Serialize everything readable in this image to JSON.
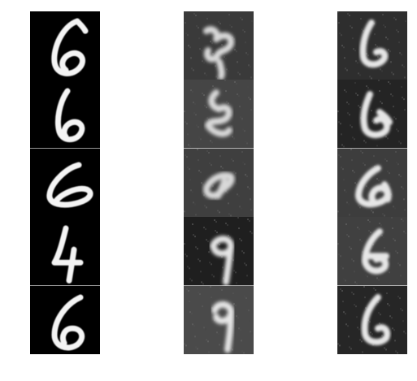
{
  "figure": {
    "columns": [
      {
        "id": "original",
        "style": "clean",
        "tiles": [
          {
            "digit": "6",
            "background": "#000000",
            "stroke": "#f4f4f4"
          },
          {
            "digit": "6",
            "background": "#000000",
            "stroke": "#f4f4f4"
          },
          {
            "digit": "6",
            "background": "#000000",
            "stroke": "#f4f4f4"
          },
          {
            "digit": "4",
            "background": "#000000",
            "stroke": "#f4f4f4"
          },
          {
            "digit": "6",
            "background": "#000000",
            "stroke": "#f4f4f4"
          }
        ]
      },
      {
        "id": "reconstruction-a",
        "style": "noisy",
        "tiles": [
          {
            "digit": "blob",
            "background": "#3a3a3a",
            "stroke": "#d9d9d9"
          },
          {
            "digit": "blob",
            "background": "#454545",
            "stroke": "#d9d9d9"
          },
          {
            "digit": "blob",
            "background": "#3f3f3f",
            "stroke": "#d9d9d9"
          },
          {
            "digit": "9",
            "background": "#1f1f1f",
            "stroke": "#e6e6e6"
          },
          {
            "digit": "9",
            "background": "#4a4a4a",
            "stroke": "#e6e6e6"
          }
        ]
      },
      {
        "id": "reconstruction-b",
        "style": "soft",
        "tiles": [
          {
            "digit": "6",
            "background": "#2e2e2e",
            "stroke": "#e6e6e6"
          },
          {
            "digit": "6",
            "background": "#242424",
            "stroke": "#e6e6e6"
          },
          {
            "digit": "6",
            "background": "#3d3d3d",
            "stroke": "#e6e6e6"
          },
          {
            "digit": "6",
            "background": "#404040",
            "stroke": "#e6e6e6"
          },
          {
            "digit": "6",
            "background": "#262626",
            "stroke": "#e6e6e6"
          }
        ]
      }
    ]
  }
}
